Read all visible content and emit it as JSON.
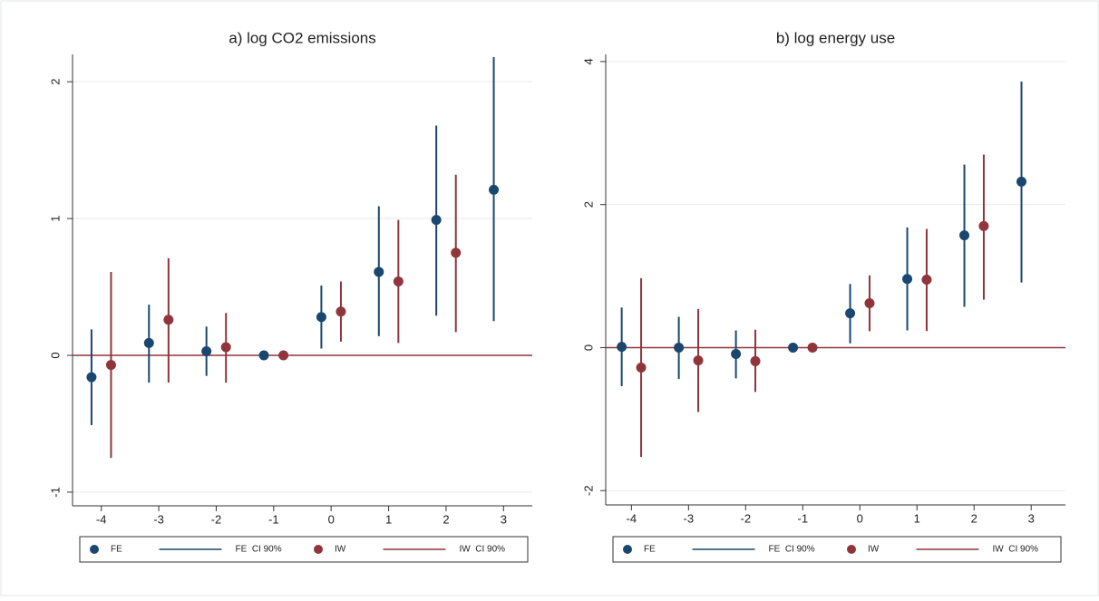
{
  "chart_data": [
    {
      "type": "dot-ci",
      "title": "a) log CO2 emissions",
      "x": [
        -4,
        -3,
        -2,
        -1,
        0,
        1,
        2,
        3
      ],
      "xlim": [
        -4.5,
        3.5
      ],
      "xticks": [
        -4,
        -3,
        -2,
        -1,
        0,
        1,
        2,
        3
      ],
      "ylim": [
        -1.1,
        2.2
      ],
      "yticks": [
        -1,
        0,
        1,
        2
      ],
      "grid": true,
      "refline": 0,
      "refline_color": "#90353b",
      "legend": "bottom",
      "series": [
        {
          "name": "FE",
          "ci_label": "FE  CI 90%",
          "color": "#1a476f",
          "values": [
            -0.16,
            0.09,
            0.03,
            0,
            0.28,
            0.61,
            0.99,
            1.21
          ],
          "low": [
            -0.51,
            -0.2,
            -0.15,
            0,
            0.05,
            0.14,
            0.29,
            0.25
          ],
          "high": [
            0.19,
            0.37,
            0.21,
            0,
            0.51,
            1.09,
            1.68,
            2.18
          ]
        },
        {
          "name": "IW",
          "ci_label": "IW  CI 90%",
          "color": "#90353b",
          "values": [
            -0.07,
            0.26,
            0.06,
            0,
            0.32,
            0.54,
            0.75,
            null
          ],
          "low": [
            -0.75,
            -0.2,
            -0.2,
            0,
            0.1,
            0.09,
            0.17,
            null
          ],
          "high": [
            0.61,
            0.71,
            0.31,
            0,
            0.54,
            0.99,
            1.32,
            null
          ]
        }
      ]
    },
    {
      "type": "dot-ci",
      "title": "b) log energy use",
      "x": [
        -4,
        -3,
        -2,
        -1,
        0,
        1,
        2,
        3
      ],
      "xlim": [
        -4.45,
        3.6
      ],
      "xticks": [
        -4,
        -3,
        -2,
        -1,
        0,
        1,
        2,
        3
      ],
      "ylim": [
        -2.2,
        4.1
      ],
      "yticks": [
        -2,
        0,
        2,
        4
      ],
      "grid": true,
      "refline": 0,
      "refline_color": "#90353b",
      "legend": "bottom",
      "series": [
        {
          "name": "FE",
          "ci_label": "FE  CI 90%",
          "color": "#1a476f",
          "values": [
            0.01,
            0,
            -0.09,
            0,
            0.48,
            0.96,
            1.57,
            2.32
          ],
          "low": [
            -0.54,
            -0.44,
            -0.43,
            0,
            0.06,
            0.24,
            0.57,
            0.91
          ],
          "high": [
            0.56,
            0.43,
            0.24,
            0,
            0.89,
            1.68,
            2.56,
            3.72
          ]
        },
        {
          "name": "IW",
          "ci_label": "IW  CI 90%",
          "color": "#90353b",
          "values": [
            -0.28,
            -0.18,
            -0.19,
            0,
            0.62,
            0.95,
            1.7,
            null
          ],
          "low": [
            -1.53,
            -0.9,
            -0.62,
            0,
            0.23,
            0.23,
            0.67,
            null
          ],
          "high": [
            0.97,
            0.54,
            0.25,
            0,
            1.01,
            1.66,
            2.7,
            null
          ]
        }
      ]
    }
  ]
}
